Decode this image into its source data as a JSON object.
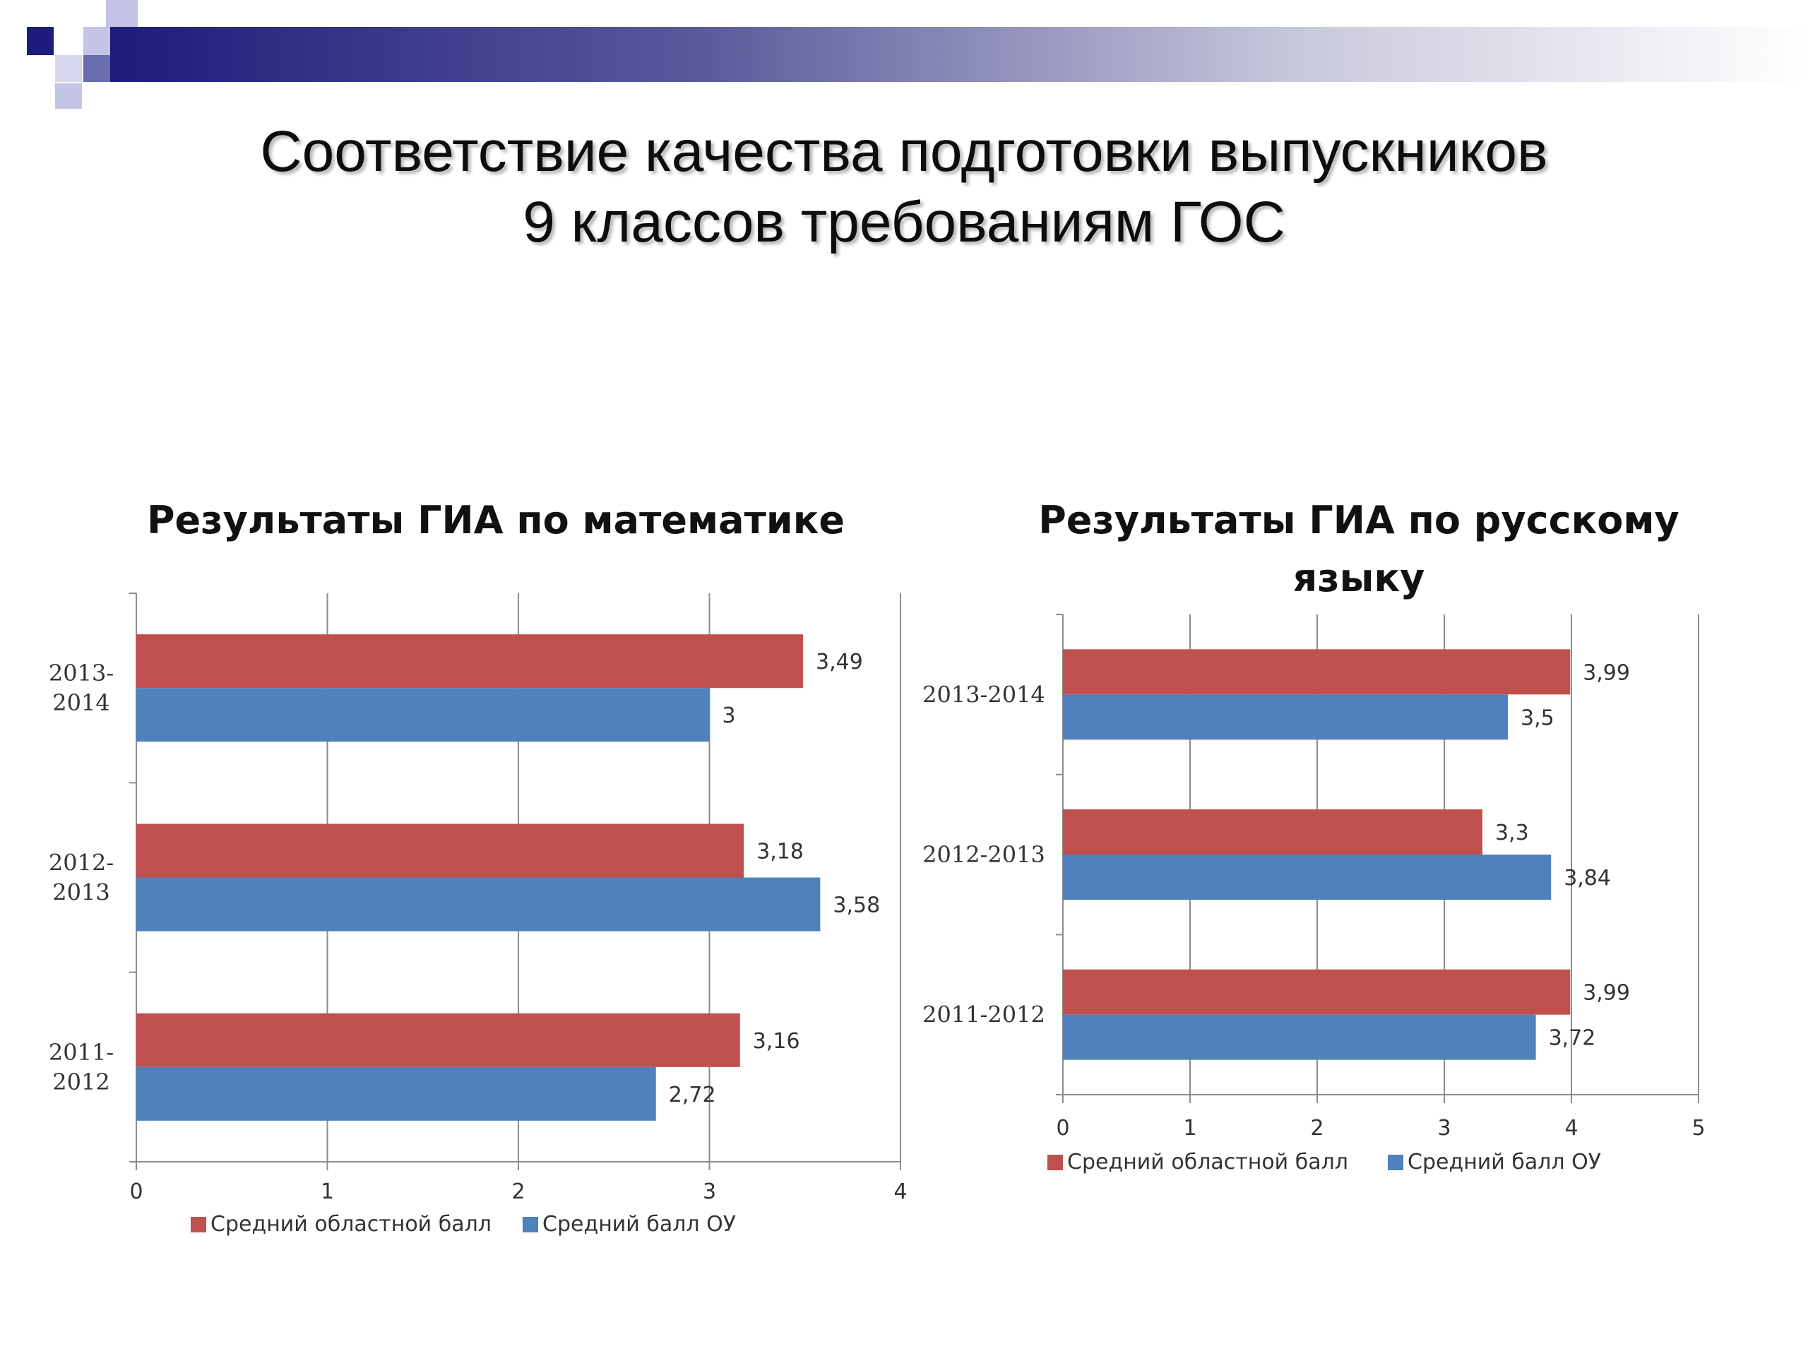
{
  "slide": {
    "title_line1": "Соответствие качества подготовки выпускников",
    "title_line2": "9 классов требованиям ГОС"
  },
  "colors": {
    "header_dark": "#1c1c7a",
    "accent_square": "#c4c4e6",
    "regional": "#c0504d",
    "school": "#4f81bd",
    "grid": "#8c8c8c"
  },
  "chart_data": [
    {
      "type": "bar",
      "orientation": "horizontal",
      "title": "Результаты ГИА по математике",
      "categories": [
        "2011-\n2012",
        "2012-\n2013",
        "2013-\n2014"
      ],
      "series": [
        {
          "name": "Средний областной балл",
          "values": [
            3.16,
            3.18,
            3.49
          ],
          "labels": [
            "3,16",
            "3,18",
            "3,49"
          ]
        },
        {
          "name": "Средний балл ОУ",
          "values": [
            2.72,
            3.58,
            3
          ],
          "labels": [
            "2,72",
            "3,58",
            "3"
          ]
        }
      ],
      "xlim": [
        0,
        4
      ],
      "ticks": [
        "0",
        "1",
        "2",
        "3",
        "4"
      ],
      "grid": true,
      "legend_position": "bottom"
    },
    {
      "type": "bar",
      "orientation": "horizontal",
      "title": "Результаты ГИА по русскому языку",
      "categories": [
        "2011-2012",
        "2012-2013",
        "2013-2014"
      ],
      "series": [
        {
          "name": "Средний областной балл",
          "values": [
            3.99,
            3.3,
            3.99
          ],
          "labels": [
            "3,99",
            "3,3",
            "3,99"
          ]
        },
        {
          "name": "Средний балл ОУ",
          "values": [
            3.72,
            3.84,
            3.5
          ],
          "labels": [
            "3,72",
            "3,84",
            "3,5"
          ]
        }
      ],
      "xlim": [
        0,
        5
      ],
      "ticks": [
        "0",
        "1",
        "2",
        "3",
        "4",
        "5"
      ],
      "grid": true,
      "legend_position": "bottom"
    }
  ]
}
